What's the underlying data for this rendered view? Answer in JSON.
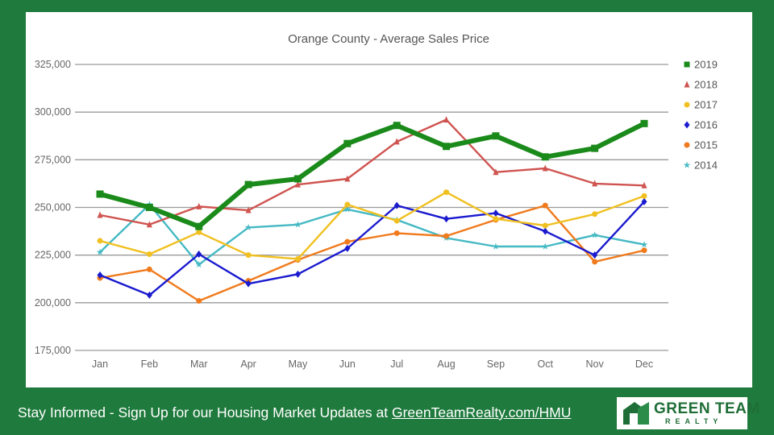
{
  "chart_data": {
    "type": "line",
    "title": "Orange County - Average Sales Price",
    "xlabel": "",
    "ylabel": "",
    "categories": [
      "Jan",
      "Feb",
      "Mar",
      "Apr",
      "May",
      "Jun",
      "Jul",
      "Aug",
      "Sep",
      "Oct",
      "Nov",
      "Dec"
    ],
    "ylim": [
      175000,
      325000
    ],
    "yticks": [
      175000,
      200000,
      225000,
      250000,
      275000,
      300000,
      325000
    ],
    "ytick_labels": [
      "175,000",
      "200,000",
      "225,000",
      "250,000",
      "275,000",
      "300,000",
      "325,000"
    ],
    "grid": true,
    "legend_position": "right",
    "series": [
      {
        "name": "2019",
        "color": "#1a8a1a",
        "marker": "square",
        "bold": true,
        "values": [
          257000,
          250000,
          240000,
          262000,
          265000,
          283500,
          293000,
          282000,
          287500,
          276500,
          281000,
          294000
        ]
      },
      {
        "name": "2018",
        "color": "#cf5450",
        "marker": "triangle",
        "values": [
          246000,
          241000,
          250500,
          248500,
          262000,
          265000,
          284500,
          296000,
          268500,
          270500,
          262500,
          261500
        ]
      },
      {
        "name": "2017",
        "color": "#f0c020",
        "marker": "circle",
        "values": [
          232500,
          225500,
          237000,
          225000,
          223000,
          251500,
          243000,
          258000,
          244000,
          240500,
          246500,
          256000
        ]
      },
      {
        "name": "2016",
        "color": "#1a1acf",
        "marker": "diamond",
        "values": [
          214500,
          204000,
          225500,
          210000,
          215000,
          228500,
          251000,
          244000,
          247000,
          237500,
          225000,
          253000
        ]
      },
      {
        "name": "2015",
        "color": "#f07a1c",
        "marker": "circle",
        "values": [
          213000,
          217500,
          201000,
          211500,
          222500,
          232000,
          236500,
          235000,
          243500,
          251000,
          221500,
          227500
        ]
      },
      {
        "name": "2014",
        "color": "#45b9c4",
        "marker": "star",
        "values": [
          226500,
          251500,
          220000,
          239500,
          241000,
          249000,
          243500,
          234000,
          229500,
          229500,
          235500,
          230500
        ]
      }
    ]
  },
  "footer": {
    "text": "Stay Informed - Sign Up for our Housing Market Updates at ",
    "link": "GreenTeamRealty.com/HMU"
  },
  "logo": {
    "main": "GREEN TEAM",
    "sub": "REALTY"
  }
}
